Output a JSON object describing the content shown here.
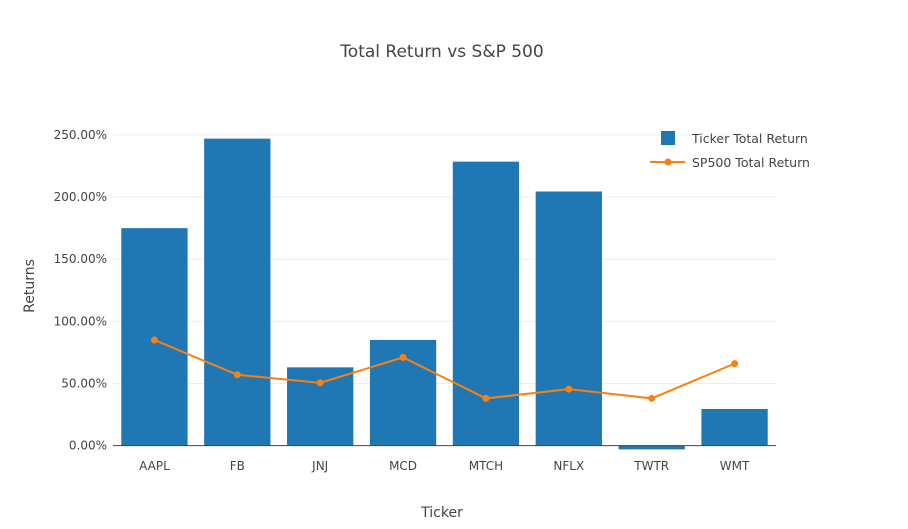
{
  "chart_data": {
    "type": "bar",
    "title": "Total Return vs S&P 500",
    "xlabel": "Ticker",
    "ylabel": "Returns",
    "categories": [
      "AAPL",
      "FB",
      "JNJ",
      "MCD",
      "MTCH",
      "NFLX",
      "TWTR",
      "WMT"
    ],
    "series": [
      {
        "name": "Ticker Total Return",
        "type": "bar",
        "color": "#1f77b4",
        "values": [
          175.0,
          247.0,
          63.0,
          85.0,
          228.5,
          204.5,
          -3.0,
          29.5
        ]
      },
      {
        "name": "SP500 Total Return",
        "type": "line",
        "color": "#ff7f0e",
        "values": [
          85.0,
          57.0,
          50.5,
          71.0,
          38.0,
          45.5,
          38.0,
          66.0
        ]
      }
    ],
    "yticks": [
      0,
      50,
      100,
      150,
      200,
      250
    ],
    "ytick_labels": [
      "0.00%",
      "50.00%",
      "100.00%",
      "150.00%",
      "200.00%",
      "250.00%"
    ],
    "ylim": [
      -3.5,
      262
    ],
    "grid": true,
    "legend_position": "top-right"
  }
}
